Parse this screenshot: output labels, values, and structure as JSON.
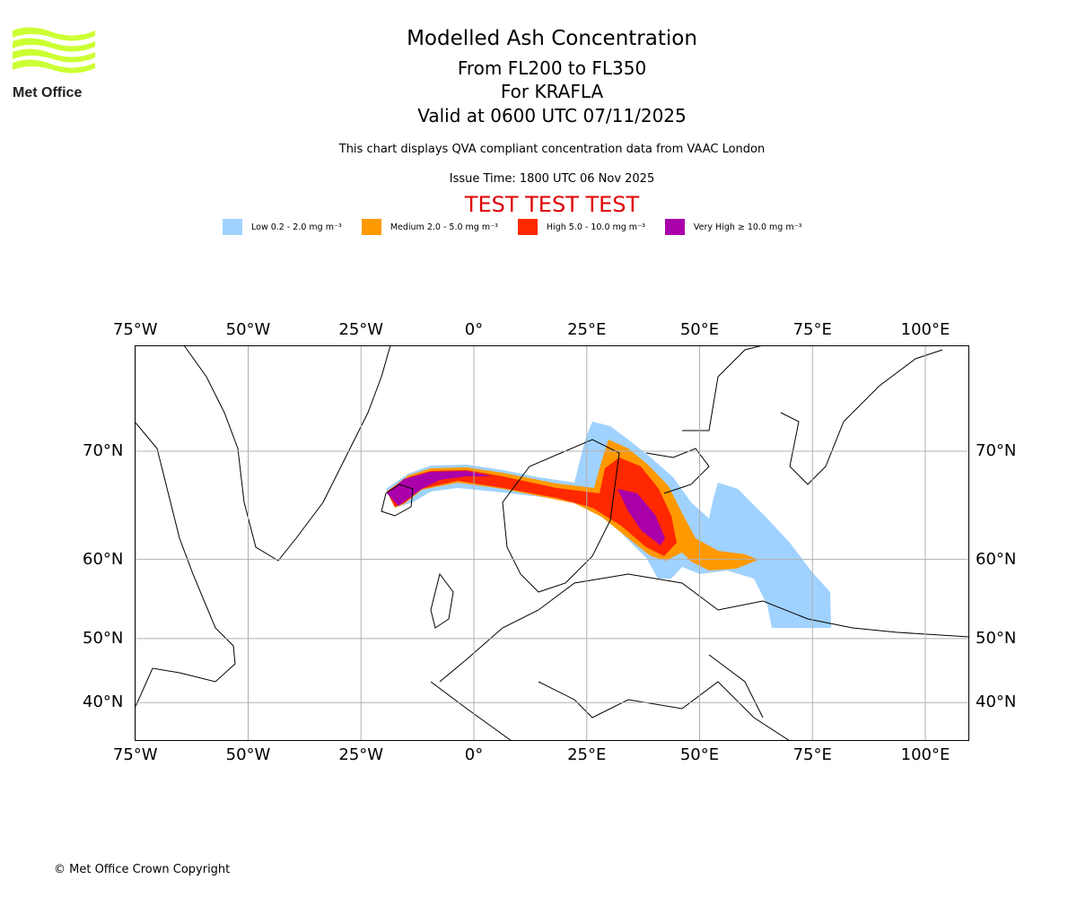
{
  "logo": {
    "text": "Met Office"
  },
  "header": {
    "title": "Modelled Ash Concentration",
    "levels": "From FL200 to FL350",
    "volcano": "For KRAFLA",
    "valid": "Valid at 0600 UTC 07/11/2025",
    "description": "This chart displays QVA compliant concentration data from VAAC London",
    "issue_time": "Issue Time: 1800 UTC 06 Nov 2025",
    "test_banner": "TEST TEST TEST"
  },
  "legend": [
    {
      "label": "Low 0.2 - 2.0 mg m⁻³",
      "color": "#a0d2ff"
    },
    {
      "label": "Medium 2.0 - 5.0 mg m⁻³",
      "color": "#ff9900"
    },
    {
      "label": "High 5.0 - 10.0 mg m⁻³",
      "color": "#ff2800"
    },
    {
      "label": "Very High ≥ 10.0 mg m⁻³",
      "color": "#aa00aa"
    }
  ],
  "chart_data": {
    "type": "map",
    "projection": "mercator",
    "lon_range": [
      -75,
      110
    ],
    "lat_range": [
      33,
      77
    ],
    "lon_ticks": [
      "75°W",
      "50°W",
      "25°W",
      "0°",
      "25°E",
      "50°E",
      "75°E",
      "100°E"
    ],
    "lat_ticks": [
      "70°N",
      "60°N",
      "50°N",
      "40°N"
    ],
    "grid": true,
    "plume_description_levels": [
      "Low",
      "Medium",
      "High",
      "Very High"
    ]
  },
  "footer": {
    "copyright": "© Met Office Crown Copyright"
  }
}
